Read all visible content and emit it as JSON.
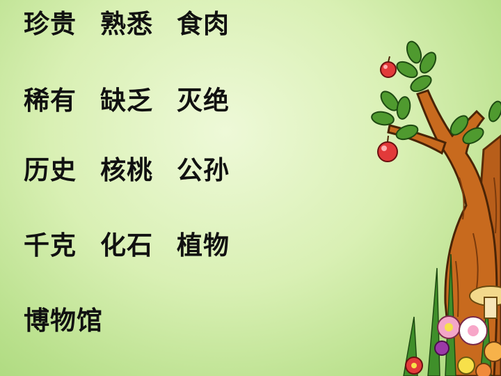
{
  "rows": [
    [
      "珍贵",
      "熟悉",
      "食肉"
    ],
    [
      "稀有",
      "缺乏",
      "灭绝"
    ],
    [
      "历史",
      "核桃",
      "公孙"
    ],
    [
      "千克",
      "化石",
      "植物"
    ],
    [
      "博物馆"
    ]
  ],
  "colors": {
    "background": "#d6efb0",
    "text": "#111111",
    "trunk": "#c86a1e",
    "leaf": "#4f9a2f",
    "apple": "#e23a3a"
  },
  "icons": [
    "apple-tree-illustration",
    "flowers-illustration"
  ]
}
